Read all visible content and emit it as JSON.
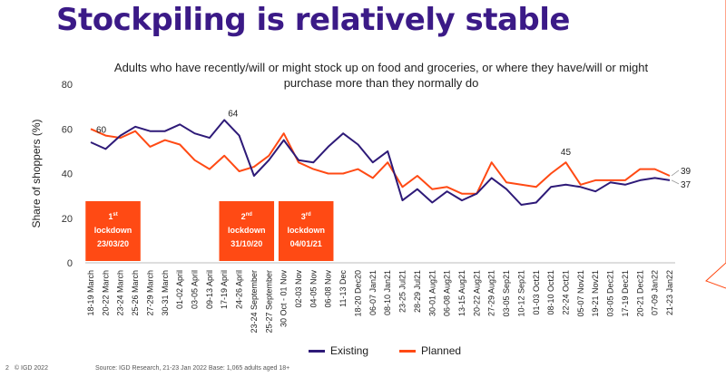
{
  "slide": {
    "title": "Stockpiling is relatively stable",
    "subtitle": "Adults who have recently/will or might stock up on food and groceries, or where they have/will or might purchase more than they normally do"
  },
  "footer": {
    "page": "2",
    "copyright": "© IGD 2022",
    "source": "Source: IGD Research, 21-23 Jan 2022  Base: 1,065 adults aged 18+"
  },
  "colors": {
    "existing": "#2e1a78",
    "planned": "#ff4a14",
    "title": "#3b1a87"
  },
  "annotations": [
    {
      "ordinal": "1",
      "suffix": "st",
      "text": "lockdown",
      "date": "23/03/20",
      "start_index": 0,
      "end_index": 3
    },
    {
      "ordinal": "2",
      "suffix": "nd",
      "text": "lockdown",
      "date": "31/10/20",
      "start_index": 9,
      "end_index": 12
    },
    {
      "ordinal": "3",
      "suffix": "rd",
      "text": "lockdown",
      "date": "04/01/21",
      "start_index": 13,
      "end_index": 16
    }
  ],
  "chart_data": {
    "type": "line",
    "title": "Adults who have recently/will or might stock up on food and groceries, or where they have/will or might purchase more than they normally do",
    "ylabel": "Share of shoppers (%)",
    "ylim": [
      0,
      80
    ],
    "yticks": [
      0,
      20,
      40,
      60,
      80
    ],
    "grid": false,
    "legend_position": "bottom",
    "categories": [
      "18-19 March",
      "20-22 March",
      "23-24 March",
      "25-26 March",
      "27-29 March",
      "30-31 March",
      "01-02 April",
      "03-05 April",
      "09-13 April",
      "17-19 April",
      "24-26 April",
      "23-24 September",
      "25-27 September",
      "30 Oct - 01 Nov",
      "02-03 Nov",
      "04-05 Nov",
      "06-08 Nov",
      "11-13 Dec",
      "18-20 Dec20",
      "06-07 Jan21",
      "08-10 Jan21",
      "23-25 Jul21",
      "28-29 Jul21",
      "30-01 Aug21",
      "06-08 Aug21",
      "13-15 Aug21",
      "20-22 Aug21",
      "27-29 Aug21",
      "03-05 Sep21",
      "10-12 Sep21",
      "01-03 Oct21",
      "08-10 Oct21",
      "22-24 Oct21",
      "05-07 Nov21",
      "19-21 Nov21",
      "03-05 Dec21",
      "17-19 Dec21",
      "20-21 Dec21",
      "07-09 Jan22",
      "21-23 Jan22"
    ],
    "series": [
      {
        "name": "Existing",
        "color": "#2e1a78",
        "values": [
          54,
          51,
          57,
          61,
          59,
          59,
          62,
          58,
          56,
          64,
          57,
          39,
          46,
          55,
          46,
          45,
          52,
          58,
          53,
          45,
          50,
          28,
          33,
          27,
          32,
          28,
          31,
          38,
          33,
          26,
          27,
          34,
          35,
          34,
          32,
          36,
          35,
          37,
          38,
          37
        ]
      },
      {
        "name": "Planned",
        "color": "#ff4a14",
        "values": [
          60,
          57,
          56,
          59,
          52,
          55,
          53,
          46,
          42,
          48,
          41,
          43,
          48,
          58,
          45,
          42,
          40,
          40,
          42,
          38,
          45,
          34,
          39,
          33,
          34,
          31,
          31,
          45,
          36,
          35,
          34,
          40,
          45,
          35,
          37,
          37,
          37,
          42,
          42,
          39
        ]
      }
    ],
    "data_labels": [
      {
        "series": "Planned",
        "index": 0,
        "text": "60"
      },
      {
        "series": "Existing",
        "index": 9,
        "text": "64"
      },
      {
        "series": "Planned",
        "index": 32,
        "text": "45"
      },
      {
        "series": "Planned",
        "index": 39,
        "text": "39"
      },
      {
        "series": "Existing",
        "index": 39,
        "text": "37"
      }
    ]
  }
}
